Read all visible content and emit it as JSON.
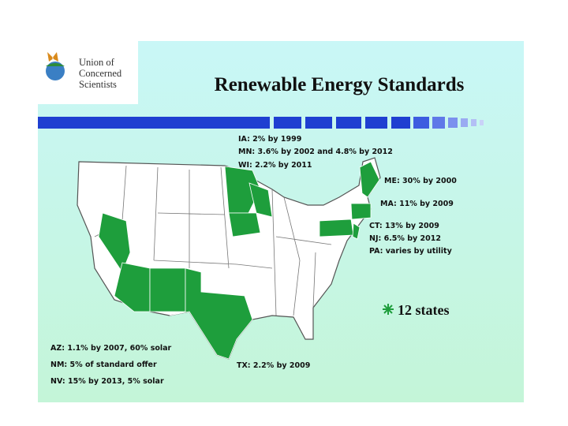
{
  "header": {
    "logo": [
      "Union of",
      "Concerned",
      "Scientists"
    ],
    "title": "Renewable Energy Standards"
  },
  "annotations": {
    "north": [
      "IA: 2% by 1999",
      "MN: 3.6% by 2002 and 4.8% by 2012",
      "WI: 2.2% by 2011"
    ],
    "me": "ME: 30% by 2000",
    "ma": "MA: 11% by 2009",
    "east": [
      "CT: 13% by 2009",
      "NJ: 6.5% by 2012",
      "PA: varies by utility"
    ],
    "southwest": [
      "AZ: 1.1%  by 2007, 60% solar",
      "NM: 5% of standard offer",
      "NV: 15% by 2013, 5% solar"
    ],
    "tx": "TX: 2.2% by 2009"
  },
  "highlight": "12 states"
}
